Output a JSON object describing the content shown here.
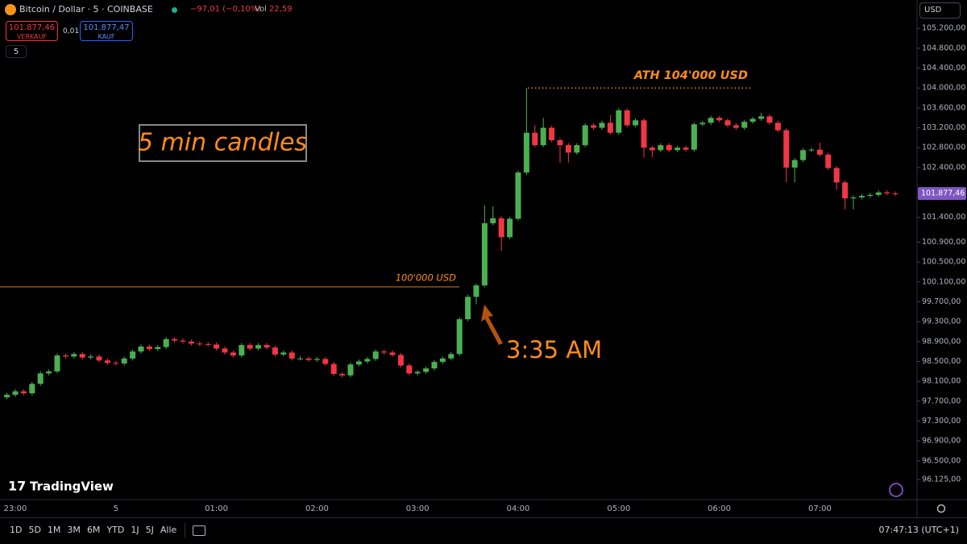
{
  "header": {
    "symbol": "Bitcoin / Dollar · 5 · COINBASE",
    "change": "−97,01 (−0,10%)",
    "vol_label": "Vol",
    "vol": "22,59",
    "sell_price": "101.877,46",
    "sell_label": "VERKAUF",
    "spread": "0,01",
    "buy_price": "101.877,47",
    "buy_label": "KAUF",
    "interval": "5",
    "currency": "USD",
    "logo": "TradingView"
  },
  "toolbar": {
    "ranges": [
      "1D",
      "5D",
      "1M",
      "3M",
      "6M",
      "YTD",
      "1J",
      "5J",
      "Alle"
    ],
    "clock": "07:47:13 (UTC+1)"
  },
  "chart_data": {
    "type": "candlestick",
    "up_color": "#4caf50",
    "down_color": "#f23645",
    "annotation_color": "#ff8c1a",
    "categories": [
      null,
      "23:00",
      null,
      null,
      null,
      null,
      null,
      null,
      null,
      null,
      null,
      null,
      null,
      "5",
      null,
      null,
      null,
      null,
      null,
      null,
      null,
      null,
      null,
      null,
      null,
      "01:00",
      null,
      null,
      null,
      null,
      null,
      null,
      null,
      null,
      null,
      null,
      null,
      "02:00",
      null,
      null,
      null,
      null,
      null,
      null,
      null,
      null,
      null,
      null,
      null,
      "03:00",
      null,
      null,
      null,
      null,
      null,
      null,
      null,
      null,
      null,
      null,
      null,
      "04:00",
      null,
      null,
      null,
      null,
      null,
      null,
      null,
      null,
      null,
      null,
      null,
      "05:00",
      null,
      null,
      null,
      null,
      null,
      null,
      null,
      null,
      null,
      null,
      null,
      "06:00",
      null,
      null,
      null,
      null,
      null,
      null,
      null,
      null,
      null,
      null,
      null,
      "07:00",
      null,
      null,
      null,
      null,
      null,
      null,
      null,
      null,
      null
    ],
    "open": [
      97780,
      97830,
      97900,
      97860,
      98050,
      98260,
      98300,
      98620,
      98600,
      98650,
      98580,
      98600,
      98520,
      98470,
      98460,
      98560,
      98700,
      98800,
      98750,
      98790,
      98950,
      98920,
      98900,
      98860,
      98850,
      98840,
      98760,
      98680,
      98620,
      98830,
      98760,
      98830,
      98780,
      98640,
      98680,
      98560,
      98560,
      98530,
      98550,
      98450,
      98250,
      98220,
      98440,
      98500,
      98550,
      98700,
      98680,
      98630,
      98420,
      98260,
      98290,
      98360,
      98490,
      98560,
      98650,
      99350,
      99800,
      100030,
      101280,
      101380,
      101000,
      101370,
      102300,
      103100,
      102850,
      103200,
      102950,
      102850,
      102700,
      102850,
      103250,
      103200,
      103300,
      103100,
      103550,
      103250,
      103350,
      102800,
      102750,
      102850,
      102750,
      102800,
      102760,
      103270,
      103300,
      103400,
      103350,
      103250,
      103200,
      103320,
      103380,
      103430,
      103300,
      103150,
      102400,
      102550,
      102750,
      102760,
      102660,
      102390,
      102100,
      101780,
      101800,
      101830,
      101850,
      101900,
      101880
    ],
    "high": [
      97870,
      97940,
      97940,
      98090,
      98300,
      98340,
      98660,
      98660,
      98690,
      98690,
      98640,
      98640,
      98560,
      98510,
      98600,
      98740,
      98840,
      98840,
      98830,
      98990,
      98990,
      98960,
      98940,
      98900,
      98890,
      98880,
      98800,
      98720,
      98870,
      98870,
      98870,
      98870,
      98820,
      98720,
      98720,
      98600,
      98600,
      98590,
      98590,
      98490,
      98290,
      98480,
      98540,
      98590,
      98740,
      98740,
      98720,
      98670,
      98460,
      98330,
      98400,
      98530,
      98600,
      98690,
      99390,
      99840,
      100070,
      101640,
      101620,
      101420,
      101410,
      102340,
      104000,
      103250,
      103400,
      103240,
      102990,
      102890,
      102890,
      103290,
      103290,
      103340,
      103450,
      103590,
      103590,
      103390,
      103390,
      102840,
      102890,
      102890,
      102840,
      102840,
      103310,
      103340,
      103440,
      103440,
      103390,
      103290,
      103360,
      103420,
      103500,
      103470,
      103340,
      103190,
      102590,
      102790,
      102800,
      102900,
      102700,
      102430,
      102140,
      101840,
      101870,
      101890,
      101940,
      101940,
      101920
    ],
    "low": [
      97740,
      97790,
      97820,
      97820,
      98010,
      98220,
      98260,
      98560,
      98560,
      98540,
      98540,
      98480,
      98430,
      98420,
      98420,
      98520,
      98660,
      98710,
      98710,
      98750,
      98880,
      98860,
      98820,
      98810,
      98800,
      98720,
      98640,
      98580,
      98580,
      98720,
      98720,
      98740,
      98600,
      98600,
      98520,
      98520,
      98490,
      98490,
      98410,
      98210,
      98180,
      98180,
      98400,
      98460,
      98510,
      98640,
      98590,
      98380,
      98220,
      98220,
      98250,
      98320,
      98450,
      98520,
      98610,
      99310,
      99650,
      99990,
      101240,
      100720,
      100960,
      101330,
      102250,
      102810,
      102810,
      102910,
      102500,
      102500,
      102660,
      102810,
      103160,
      103160,
      103060,
      103060,
      103210,
      103210,
      102600,
      102610,
      102710,
      102710,
      102710,
      102720,
      102720,
      103230,
      103260,
      103310,
      103210,
      103160,
      103160,
      103280,
      103340,
      103260,
      103110,
      102100,
      102100,
      102510,
      102710,
      102620,
      102350,
      101950,
      101560,
      101560,
      101760,
      101790,
      101810,
      101840,
      101830
    ],
    "close": [
      97830,
      97900,
      97860,
      98050,
      98260,
      98300,
      98620,
      98600,
      98650,
      98580,
      98600,
      98520,
      98470,
      98460,
      98560,
      98700,
      98800,
      98750,
      98790,
      98950,
      98920,
      98900,
      98860,
      98850,
      98840,
      98760,
      98680,
      98620,
      98830,
      98760,
      98830,
      98780,
      98640,
      98680,
      98560,
      98560,
      98530,
      98550,
      98450,
      98250,
      98220,
      98440,
      98500,
      98550,
      98700,
      98680,
      98630,
      98420,
      98260,
      98290,
      98360,
      98490,
      98560,
      98650,
      99350,
      99800,
      100030,
      101280,
      101380,
      101000,
      101370,
      102300,
      103100,
      102850,
      103200,
      102950,
      102850,
      102700,
      102850,
      103250,
      103200,
      103300,
      103100,
      103550,
      103250,
      103350,
      102800,
      102750,
      102850,
      102750,
      102800,
      102760,
      103270,
      103300,
      103400,
      103350,
      103250,
      103200,
      103320,
      103380,
      103430,
      103300,
      103150,
      102400,
      102550,
      102750,
      102760,
      102660,
      102390,
      102100,
      101780,
      101800,
      101830,
      101850,
      101900,
      101880,
      101877.46
    ],
    "ylim": [
      95720,
      105770
    ],
    "yticks": [
      {
        "value": 105200,
        "label": "105.200,00"
      },
      {
        "value": 104800,
        "label": "104.800,00"
      },
      {
        "value": 104400,
        "label": "104.400,00"
      },
      {
        "value": 104000,
        "label": "104.000,00"
      },
      {
        "value": 103600,
        "label": "103.600,00"
      },
      {
        "value": 103200,
        "label": "103.200,00"
      },
      {
        "value": 102800,
        "label": "102.800,00"
      },
      {
        "value": 102400,
        "label": "102.400,00"
      },
      {
        "value": 101400,
        "label": "101.400,00"
      },
      {
        "value": 100900,
        "label": "100.900,00"
      },
      {
        "value": 100500,
        "label": "100.500,00"
      },
      {
        "value": 100100,
        "label": "100.100,00"
      },
      {
        "value": 99700,
        "label": "99.700,00"
      },
      {
        "value": 99300,
        "label": "99.300,00"
      },
      {
        "value": 98900,
        "label": "98.900,00"
      },
      {
        "value": 98500,
        "label": "98.500,00"
      },
      {
        "value": 98100,
        "label": "98.100,00"
      },
      {
        "value": 97700,
        "label": "97.700,00"
      },
      {
        "value": 97300,
        "label": "97.300,00"
      },
      {
        "value": 96900,
        "label": "96.900,00"
      },
      {
        "value": 96500,
        "label": "96.500,00"
      },
      {
        "value": 96125,
        "label": "96.125,00"
      }
    ],
    "last_price": {
      "value": 101877.46,
      "label": "101.877,46"
    },
    "levels": [
      {
        "value": 100000,
        "label": "100'000 USD"
      },
      {
        "value": 104000,
        "label": "ATH 104'000 USD"
      }
    ],
    "notes": [
      "5 min candles",
      "3:35 AM"
    ]
  }
}
